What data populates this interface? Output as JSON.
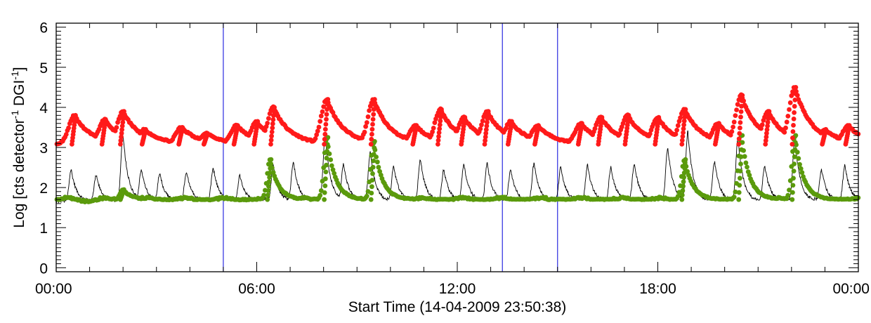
{
  "chart_data": {
    "type": "scatter",
    "title": "",
    "xlabel": "Start Time (14-04-2009 23:50:38)",
    "ylabel_main": "Log [cts detector",
    "ylabel_sup1": "-1",
    "ylabel_mid": " DGI",
    "ylabel_sup2": "-1",
    "ylabel_end": "]",
    "xlim": [
      0,
      24
    ],
    "ylim": [
      -0.1,
      6.1
    ],
    "x_ticks": [
      {
        "value": 0,
        "label": "00:00"
      },
      {
        "value": 6,
        "label": "06:00"
      },
      {
        "value": 12,
        "label": "12:00"
      },
      {
        "value": 18,
        "label": "18:00"
      },
      {
        "value": 24,
        "label": "00:00"
      }
    ],
    "y_ticks": [
      {
        "value": 0,
        "label": "0"
      },
      {
        "value": 1,
        "label": "1"
      },
      {
        "value": 2,
        "label": "2"
      },
      {
        "value": 3,
        "label": "3"
      },
      {
        "value": 4,
        "label": "4"
      },
      {
        "value": 5,
        "label": "5"
      },
      {
        "value": 6,
        "label": "6"
      }
    ],
    "vertical_markers": [
      5.0,
      13.35,
      15.0
    ],
    "marker_color": "#2a2ae0",
    "series": [
      {
        "name": "red-series",
        "style": "dots",
        "color": "#ff1a1a",
        "baseline": 3.08,
        "peaks": [
          [
            0.55,
            3.8
          ],
          [
            1.45,
            3.7
          ],
          [
            2.0,
            3.9
          ],
          [
            2.65,
            3.45
          ],
          [
            3.75,
            3.5
          ],
          [
            4.5,
            3.35
          ],
          [
            5.4,
            3.55
          ],
          [
            6.0,
            3.65
          ],
          [
            6.5,
            4.0
          ],
          [
            8.1,
            4.2
          ],
          [
            9.5,
            4.2
          ],
          [
            10.75,
            3.55
          ],
          [
            11.5,
            3.95
          ],
          [
            12.2,
            3.75
          ],
          [
            12.9,
            3.9
          ],
          [
            13.6,
            3.65
          ],
          [
            14.4,
            3.55
          ],
          [
            15.7,
            3.6
          ],
          [
            16.3,
            3.75
          ],
          [
            17.1,
            3.8
          ],
          [
            18.0,
            3.75
          ],
          [
            18.8,
            3.95
          ],
          [
            19.8,
            3.6
          ],
          [
            20.5,
            4.3
          ],
          [
            21.3,
            3.9
          ],
          [
            22.1,
            4.5
          ],
          [
            23.0,
            3.45
          ],
          [
            23.7,
            3.55
          ]
        ]
      },
      {
        "name": "green-series",
        "style": "dots",
        "color": "#5a9a0c",
        "baseline": 1.7,
        "peaks": [
          [
            2.0,
            1.95
          ],
          [
            6.4,
            2.7
          ],
          [
            8.1,
            3.25
          ],
          [
            9.5,
            3.15
          ],
          [
            18.8,
            2.7
          ],
          [
            20.5,
            3.3
          ],
          [
            22.1,
            3.3
          ]
        ]
      },
      {
        "name": "black-series",
        "style": "line",
        "color": "#000000",
        "baseline": 1.65,
        "peaks": [
          [
            0.45,
            2.45
          ],
          [
            1.2,
            2.3
          ],
          [
            2.0,
            3.35
          ],
          [
            2.55,
            2.45
          ],
          [
            3.1,
            2.35
          ],
          [
            3.9,
            2.4
          ],
          [
            4.7,
            2.5
          ],
          [
            5.5,
            2.3
          ],
          [
            6.5,
            2.55
          ],
          [
            7.1,
            2.65
          ],
          [
            8.05,
            3.3
          ],
          [
            8.6,
            2.6
          ],
          [
            9.4,
            2.9
          ],
          [
            10.1,
            2.55
          ],
          [
            10.9,
            2.7
          ],
          [
            11.6,
            2.45
          ],
          [
            12.2,
            2.6
          ],
          [
            12.9,
            2.6
          ],
          [
            13.6,
            2.45
          ],
          [
            14.3,
            2.6
          ],
          [
            15.1,
            2.5
          ],
          [
            15.9,
            2.55
          ],
          [
            16.6,
            2.5
          ],
          [
            17.3,
            2.6
          ],
          [
            18.3,
            3.0
          ],
          [
            18.9,
            3.4
          ],
          [
            19.7,
            2.65
          ],
          [
            20.4,
            3.25
          ],
          [
            21.2,
            2.55
          ],
          [
            22.1,
            3.25
          ],
          [
            22.9,
            2.45
          ],
          [
            23.6,
            2.55
          ]
        ]
      }
    ]
  }
}
